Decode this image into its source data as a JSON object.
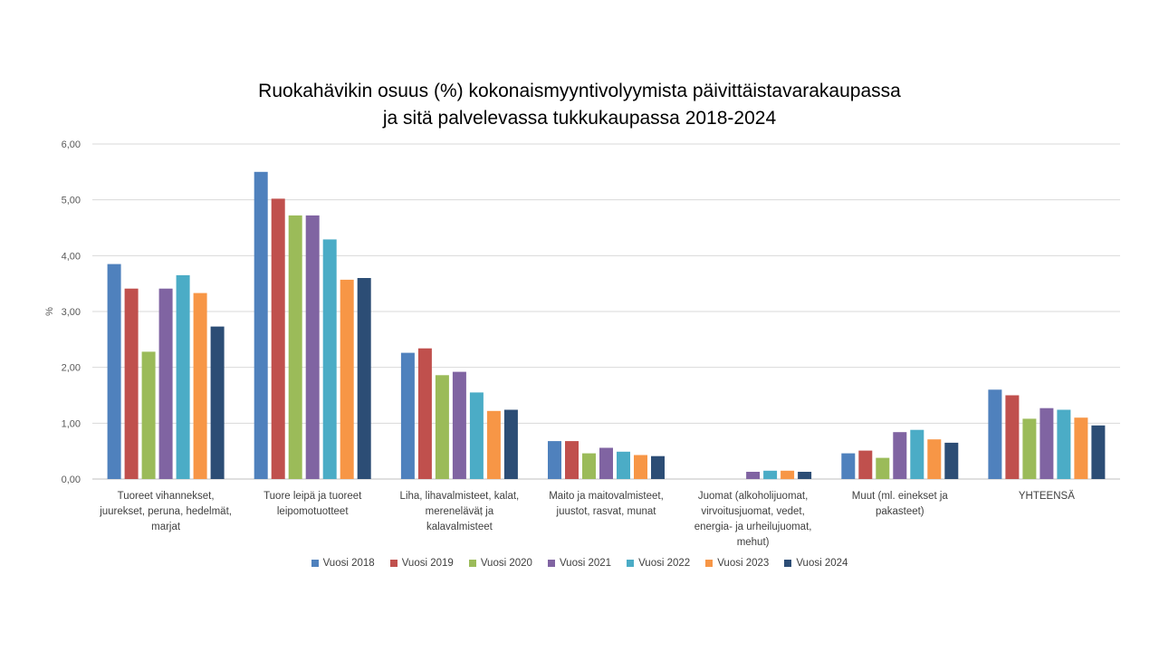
{
  "chart_data": {
    "type": "bar",
    "title_lines": [
      "Ruokahävikin osuus (%) kokonaismyyntivolyymista päivittäistavarakaupassa",
      "ja sitä palvelevassa tukkukaupassa 2018-2024"
    ],
    "ylabel": "%",
    "ylim": [
      0,
      6
    ],
    "yticks": [
      "0,00",
      "1,00",
      "2,00",
      "3,00",
      "4,00",
      "5,00",
      "6,00"
    ],
    "grid": true,
    "legend_position": "bottom",
    "categories": [
      [
        "Tuoreet vihannekset,",
        "juurekset, peruna, hedelmät,",
        "marjat"
      ],
      [
        "Tuore leipä ja tuoreet",
        "leipomotuotteet"
      ],
      [
        "Liha, lihavalmisteet, kalat,",
        "mereneläväṭ ja",
        "kalavalmisteet"
      ],
      [
        "Maito ja maitovalmisteet,",
        "juustot, rasvat, munat"
      ],
      [
        "Juomat (alkoholijuomat,",
        "virvoitusjuomat, vedet,",
        "energia- ja urheilujuomat,",
        "mehut)"
      ],
      [
        "Muut (ml. einekset ja",
        "pakasteet)"
      ],
      [
        "YHTEENSÄ"
      ]
    ],
    "series": [
      {
        "name": "Vuosi 2018",
        "color": "#4F81BD",
        "values": [
          3.85,
          5.5,
          2.26,
          0.68,
          null,
          0.46,
          1.6
        ]
      },
      {
        "name": "Vuosi 2019",
        "color": "#C0504D",
        "values": [
          3.41,
          5.02,
          2.34,
          0.68,
          null,
          0.51,
          1.5
        ]
      },
      {
        "name": "Vuosi 2020",
        "color": "#9BBB59",
        "values": [
          2.28,
          4.72,
          1.86,
          0.46,
          null,
          0.38,
          1.08
        ]
      },
      {
        "name": "Vuosi 2021",
        "color": "#8064A2",
        "values": [
          3.41,
          4.72,
          1.92,
          0.56,
          0.13,
          0.84,
          1.27
        ]
      },
      {
        "name": "Vuosi 2022",
        "color": "#4BACC6",
        "values": [
          3.65,
          4.29,
          1.55,
          0.49,
          0.15,
          0.88,
          1.24
        ]
      },
      {
        "name": "Vuosi 2023",
        "color": "#F79646",
        "values": [
          3.33,
          3.57,
          1.22,
          0.43,
          0.15,
          0.71,
          1.1
        ]
      },
      {
        "name": "Vuosi 2024",
        "color": "#2C4D75",
        "values": [
          2.73,
          3.6,
          1.24,
          0.41,
          0.13,
          0.65,
          0.96
        ]
      }
    ]
  }
}
